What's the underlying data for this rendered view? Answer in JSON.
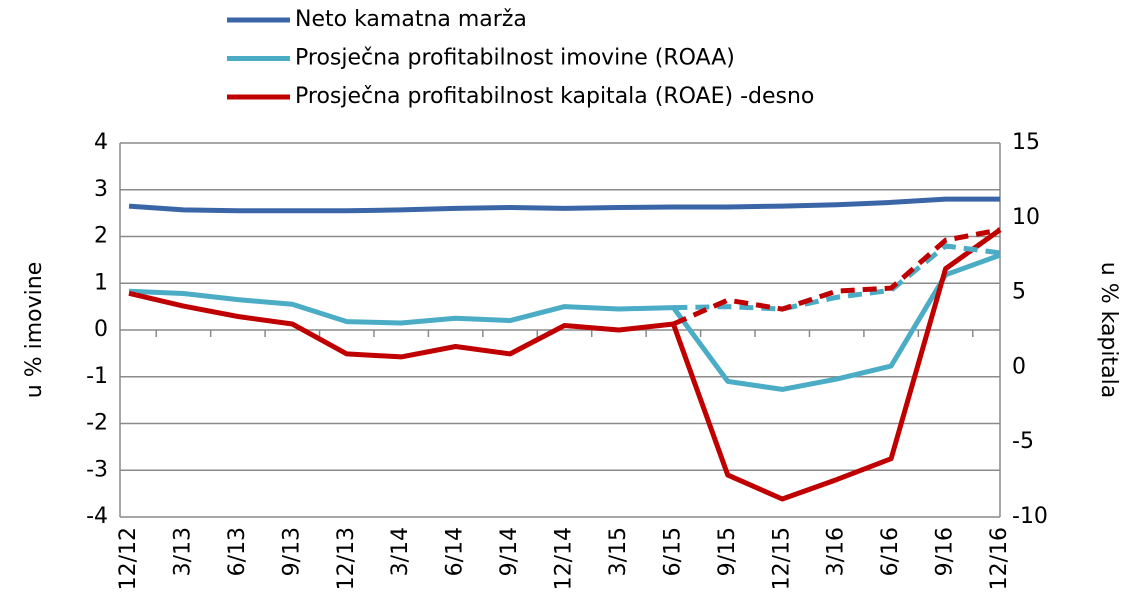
{
  "chart_data": {
    "type": "line",
    "categories": [
      "12/12",
      "3/13",
      "6/13",
      "9/13",
      "12/13",
      "3/14",
      "6/14",
      "9/14",
      "12/14",
      "3/15",
      "6/15",
      "9/15",
      "12/15",
      "3/16",
      "6/16",
      "9/16",
      "12/16"
    ],
    "series": [
      {
        "name": "Neto kamatna marža",
        "color": "#3a66a8",
        "values": [
          2.65,
          2.57,
          2.55,
          2.55,
          2.55,
          2.57,
          2.6,
          2.62,
          2.6,
          2.62,
          2.63,
          2.63,
          2.65,
          2.68,
          2.73,
          2.8,
          2.8
        ]
      },
      {
        "name": "Prosječna profitabilnost imovine (ROAA)",
        "color": "#4bacc6",
        "values": [
          0.83,
          0.78,
          0.65,
          0.55,
          0.18,
          0.15,
          0.25,
          0.2,
          0.5,
          0.45,
          0.48,
          -1.1,
          -1.27,
          -1.05,
          -0.77,
          1.18,
          1.6
        ]
      },
      {
        "name": "Prosječna profitabilnost kapitala (ROAE) -desno",
        "color": "#c00000",
        "axis": "y2",
        "values": [
          4.95,
          4.1,
          3.4,
          2.9,
          0.9,
          0.7,
          1.4,
          0.9,
          2.8,
          2.5,
          2.9,
          -7.2,
          -8.8,
          -7.5,
          -6.1,
          6.6,
          9.2
        ]
      },
      {
        "color": "#4bacc6",
        "dashed": true,
        "values": [
          null,
          null,
          null,
          null,
          null,
          null,
          null,
          null,
          null,
          null,
          0.48,
          0.5,
          0.45,
          0.7,
          0.85,
          1.8,
          1.65
        ]
      },
      {
        "color": "#c00000",
        "dashed": true,
        "axis": "y2",
        "values": [
          null,
          null,
          null,
          null,
          null,
          null,
          null,
          null,
          null,
          null,
          2.9,
          4.5,
          3.9,
          5.1,
          5.3,
          8.5,
          9.2
        ]
      }
    ],
    "y_label": "u % imovine",
    "y2_label": "u % kapitala",
    "ylim": [
      -4,
      4
    ],
    "yticks": [
      -4,
      -3,
      -2,
      -1,
      0,
      1,
      2,
      3,
      4
    ],
    "y2lim": [
      -10,
      15
    ],
    "y2ticks": [
      -10,
      -5,
      0,
      5,
      10,
      15
    ],
    "grid": true,
    "legend": "top"
  }
}
